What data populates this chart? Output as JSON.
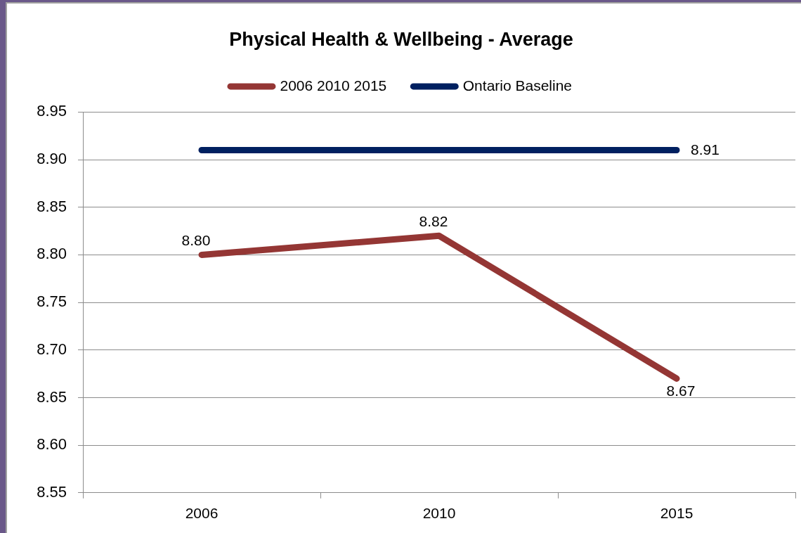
{
  "chart_data": {
    "type": "line",
    "title": "Physical Health & Wellbeing - Average",
    "categories": [
      "2006",
      "2010",
      "2015"
    ],
    "series": [
      {
        "name": "2006 2010 2015",
        "color": "#943634",
        "values": [
          8.8,
          8.82,
          8.67
        ],
        "value_labels": [
          "8.80",
          "8.82",
          "8.67"
        ]
      },
      {
        "name": "Ontario Baseline",
        "color": "#002060",
        "values": [
          8.91,
          8.91,
          8.91
        ],
        "value_labels": [
          null,
          null,
          "8.91"
        ]
      }
    ],
    "ylim": [
      8.55,
      8.95
    ],
    "yticks": [
      8.55,
      {
        "value": 8.6,
        "label": "8.60"
      },
      8.65,
      {
        "value": 8.7,
        "label": "8.70"
      },
      8.75,
      {
        "value": 8.8,
        "label": "8.80"
      },
      8.85,
      {
        "value": 8.9,
        "label": "8.90"
      },
      8.95
    ],
    "grid": "y",
    "legend": "top",
    "marker": "none",
    "line_style": "solid"
  }
}
